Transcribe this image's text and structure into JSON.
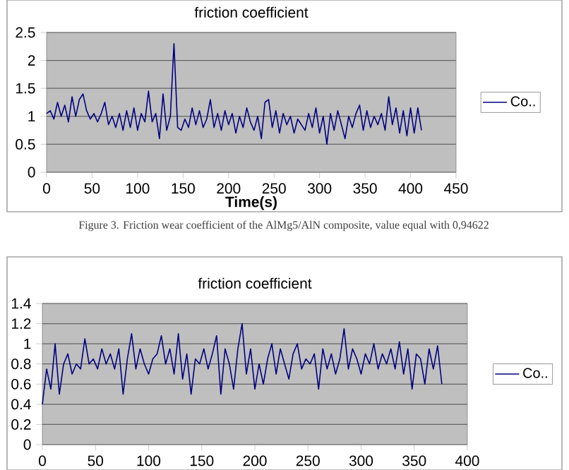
{
  "chart_data": [
    {
      "type": "line",
      "title": "friction coefficient",
      "xlabel": "Time(s)",
      "annotations": [
        "Figure 3. Friction wear coefficient of the AlMg5/AlN composite, value equal with 0,94622"
      ],
      "xlim": [
        0,
        450
      ],
      "xticks": [
        0,
        50,
        100,
        150,
        200,
        250,
        300,
        350,
        400,
        450
      ],
      "ylim": [
        0,
        2.5
      ],
      "yticks": [
        0,
        0.5,
        1,
        1.5,
        2,
        2.5
      ],
      "grid": "y",
      "legend": "right",
      "marker": "none",
      "series": [
        {
          "name": "Co..",
          "color": "#000080",
          "x": [
            0,
            4,
            8,
            12,
            16,
            20,
            24,
            28,
            32,
            36,
            40,
            44,
            48,
            52,
            56,
            60,
            64,
            68,
            72,
            76,
            80,
            84,
            88,
            92,
            96,
            100,
            104,
            108,
            112,
            116,
            120,
            124,
            128,
            132,
            136,
            140,
            144,
            148,
            152,
            156,
            160,
            164,
            168,
            172,
            176,
            180,
            184,
            188,
            192,
            196,
            200,
            204,
            208,
            212,
            216,
            220,
            224,
            228,
            232,
            236,
            240,
            244,
            248,
            252,
            256,
            260,
            264,
            268,
            272,
            276,
            280,
            284,
            288,
            292,
            296,
            300,
            304,
            308,
            312,
            316,
            320,
            324,
            328,
            332,
            336,
            340,
            344,
            348,
            352,
            356,
            360,
            364,
            368,
            372,
            376,
            380,
            384,
            388,
            392,
            396,
            400,
            404,
            408,
            412
          ],
          "values": [
            1.05,
            1.1,
            0.95,
            1.25,
            1.0,
            1.2,
            0.9,
            1.35,
            1.0,
            1.3,
            1.4,
            1.1,
            0.95,
            1.05,
            0.9,
            1.05,
            1.25,
            0.85,
            1.0,
            0.8,
            1.05,
            0.75,
            1.1,
            0.8,
            1.15,
            0.75,
            1.05,
            0.9,
            1.45,
            0.9,
            1.05,
            0.6,
            1.4,
            0.75,
            1.0,
            2.3,
            0.8,
            0.75,
            0.95,
            0.8,
            1.15,
            0.85,
            1.1,
            0.8,
            0.95,
            1.3,
            0.8,
            1.05,
            0.75,
            1.1,
            0.85,
            1.05,
            0.7,
            1.0,
            0.8,
            1.15,
            0.9,
            0.75,
            1.0,
            0.6,
            1.25,
            1.3,
            0.8,
            1.1,
            0.7,
            1.05,
            0.85,
            1.0,
            0.7,
            0.95,
            0.85,
            0.75,
            1.05,
            0.8,
            1.15,
            0.7,
            1.0,
            0.5,
            1.05,
            0.75,
            1.1,
            0.85,
            0.6,
            1.0,
            0.8,
            1.05,
            1.2,
            0.75,
            1.1,
            0.8,
            1.0,
            0.85,
            1.05,
            0.75,
            1.35,
            0.85,
            1.15,
            0.7,
            1.1,
            0.65,
            1.15,
            0.7,
            1.15,
            0.75
          ]
        }
      ]
    },
    {
      "type": "line",
      "title": "friction coefficient",
      "xlim": [
        0,
        400
      ],
      "xticks": [
        0,
        50,
        100,
        150,
        200,
        250,
        300,
        350,
        400
      ],
      "ylim": [
        0,
        1.4
      ],
      "yticks": [
        0,
        0.2,
        0.4,
        0.6,
        0.8,
        1,
        1.2,
        1.4
      ],
      "grid": "y",
      "legend": "right",
      "marker": "none",
      "series": [
        {
          "name": "Co..",
          "color": "#000080",
          "x": [
            0,
            4,
            8,
            12,
            16,
            20,
            24,
            28,
            32,
            36,
            40,
            44,
            48,
            52,
            56,
            60,
            64,
            68,
            72,
            76,
            80,
            84,
            88,
            92,
            96,
            100,
            104,
            108,
            112,
            116,
            120,
            124,
            128,
            132,
            136,
            140,
            144,
            148,
            152,
            156,
            160,
            164,
            168,
            172,
            176,
            180,
            184,
            188,
            192,
            196,
            200,
            204,
            208,
            212,
            216,
            220,
            224,
            228,
            232,
            236,
            240,
            244,
            248,
            252,
            256,
            260,
            264,
            268,
            272,
            276,
            280,
            284,
            288,
            292,
            296,
            300,
            304,
            308,
            312,
            316,
            320,
            324,
            328,
            332,
            336,
            340,
            344,
            348,
            352,
            356,
            360,
            364,
            368,
            372,
            376
          ],
          "values": [
            0.4,
            0.75,
            0.55,
            1.0,
            0.5,
            0.8,
            0.9,
            0.7,
            0.8,
            0.75,
            1.05,
            0.8,
            0.85,
            0.75,
            0.95,
            0.8,
            0.9,
            0.75,
            0.95,
            0.5,
            0.85,
            1.1,
            0.75,
            0.95,
            0.8,
            0.7,
            0.85,
            0.9,
            1.08,
            0.8,
            0.95,
            0.7,
            1.1,
            0.65,
            0.9,
            0.5,
            0.85,
            0.8,
            0.95,
            0.75,
            0.9,
            1.08,
            0.5,
            0.95,
            0.8,
            0.55,
            0.95,
            1.2,
            0.7,
            0.95,
            0.55,
            0.8,
            0.6,
            0.85,
            1.0,
            0.7,
            0.95,
            0.8,
            0.65,
            0.9,
            1.0,
            0.75,
            0.85,
            0.8,
            0.9,
            0.55,
            0.95,
            0.75,
            0.9,
            0.7,
            0.85,
            1.15,
            0.75,
            0.95,
            0.85,
            0.7,
            0.9,
            0.8,
            1.0,
            0.75,
            0.9,
            0.8,
            0.95,
            0.75,
            1.02,
            0.7,
            0.95,
            0.55,
            0.9,
            0.85,
            0.6,
            0.95,
            0.75,
            0.98,
            0.6
          ]
        }
      ]
    }
  ]
}
